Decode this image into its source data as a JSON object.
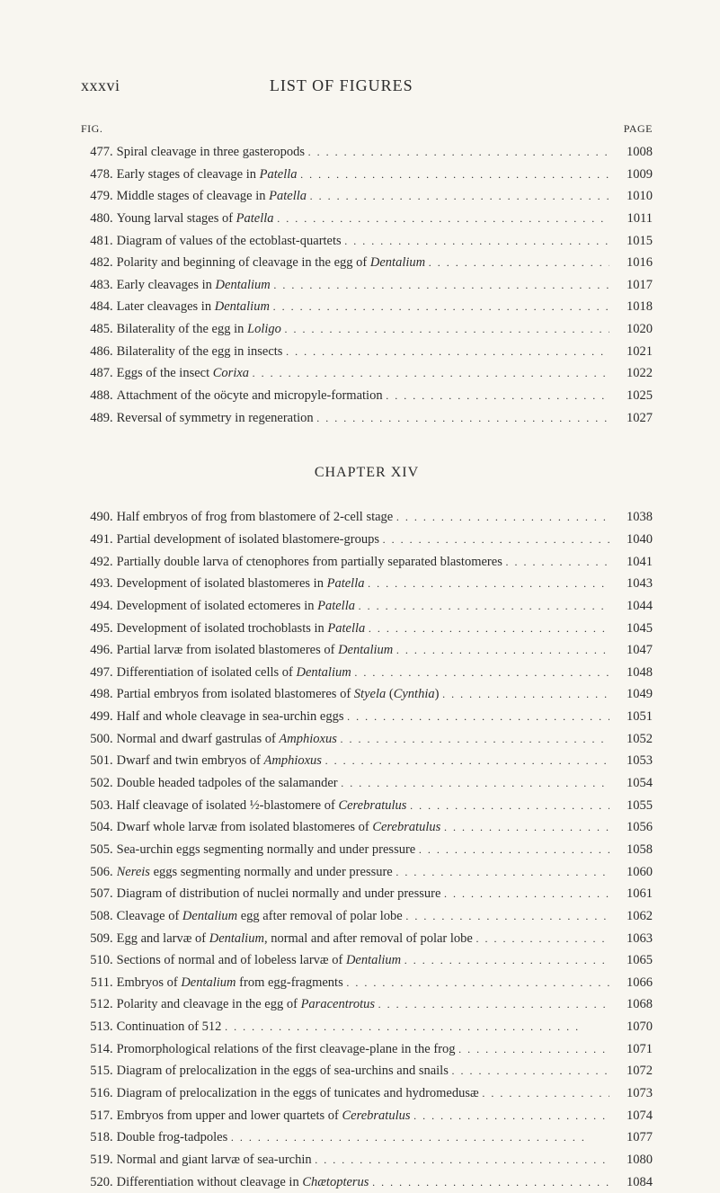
{
  "header": {
    "romanNumeral": "xxxvi",
    "title": "LIST OF FIGURES"
  },
  "columnHeaders": {
    "fig": "FIG.",
    "page": "PAGE"
  },
  "chapterHeading": "CHAPTER XIV",
  "section1": [
    {
      "num": "477",
      "text": "Spiral cleavage in three gasteropods",
      "page": "1008"
    },
    {
      "num": "478",
      "text": "Early stages of cleavage in <i>Patella</i>",
      "page": "1009"
    },
    {
      "num": "479",
      "text": "Middle stages of cleavage in <i>Patella</i>",
      "page": "1010"
    },
    {
      "num": "480",
      "text": "Young larval stages of <i>Patella</i>",
      "page": "1011"
    },
    {
      "num": "481",
      "text": "Diagram of values of the ectoblast-quartets",
      "page": "1015"
    },
    {
      "num": "482",
      "text": "Polarity and beginning of cleavage in the egg of <i>Dentalium</i>",
      "page": "1016"
    },
    {
      "num": "483",
      "text": "Early cleavages in <i>Dentalium</i>",
      "page": "1017"
    },
    {
      "num": "484",
      "text": "Later cleavages in <i>Dentalium</i>",
      "page": "1018"
    },
    {
      "num": "485",
      "text": "Bilaterality of the egg in <i>Loligo</i>",
      "page": "1020"
    },
    {
      "num": "486",
      "text": "Bilaterality of the egg in insects",
      "page": "1021"
    },
    {
      "num": "487",
      "text": "Eggs of the insect <i>Corixa</i>",
      "page": "1022"
    },
    {
      "num": "488",
      "text": "Attachment of the oöcyte and micropyle-formation",
      "page": "1025"
    },
    {
      "num": "489",
      "text": "Reversal of symmetry in regeneration",
      "page": "1027"
    }
  ],
  "section2": [
    {
      "num": "490",
      "text": "Half embryos of frog from blastomere of 2-cell stage",
      "page": "1038"
    },
    {
      "num": "491",
      "text": "Partial development of isolated blastomere-groups",
      "page": "1040"
    },
    {
      "num": "492",
      "text": "Partially double larva of ctenophores from partially separated blastomeres",
      "page": "1041"
    },
    {
      "num": "493",
      "text": "Development of isolated blastomeres in <i>Patella</i>",
      "page": "1043"
    },
    {
      "num": "494",
      "text": "Development of isolated ectomeres in <i>Patella</i>",
      "page": "1044"
    },
    {
      "num": "495",
      "text": "Development of isolated trochoblasts in <i>Patella</i>",
      "page": "1045"
    },
    {
      "num": "496",
      "text": "Partial larvæ from isolated blastomeres of <i>Dentalium</i>",
      "page": "1047"
    },
    {
      "num": "497",
      "text": "Differentiation of isolated cells of <i>Dentalium</i>",
      "page": "1048"
    },
    {
      "num": "498",
      "text": "Partial embryos from isolated blastomeres of <i>Styela</i> (<i>Cynthia</i>)",
      "page": "1049"
    },
    {
      "num": "499",
      "text": "Half and whole cleavage in sea-urchin eggs",
      "page": "1051"
    },
    {
      "num": "500",
      "text": "Normal and dwarf gastrulas of <i>Amphioxus</i>",
      "page": "1052"
    },
    {
      "num": "501",
      "text": "Dwarf and twin embryos of <i>Amphioxus</i>",
      "page": "1053"
    },
    {
      "num": "502",
      "text": "Double headed tadpoles of the salamander",
      "page": "1054"
    },
    {
      "num": "503",
      "text": "Half cleavage of isolated ½-blastomere of <i>Cerebratulus</i>",
      "page": "1055"
    },
    {
      "num": "504",
      "text": "Dwarf whole larvæ from isolated blastomeres of <i>Cerebratulus</i>",
      "page": "1056"
    },
    {
      "num": "505",
      "text": "Sea-urchin eggs segmenting normally and under pressure",
      "page": "1058"
    },
    {
      "num": "506",
      "text": "<i>Nereis</i> eggs segmenting normally and under pressure",
      "page": "1060"
    },
    {
      "num": "507",
      "text": "Diagram of distribution of nuclei normally and under pressure",
      "page": "1061"
    },
    {
      "num": "508",
      "text": "Cleavage of <i>Dentalium</i> egg after removal of polar lobe",
      "page": "1062"
    },
    {
      "num": "509",
      "text": "Egg and larvæ of <i>Dentalium</i>, normal and after removal of polar lobe",
      "page": "1063"
    },
    {
      "num": "510",
      "text": "Sections of normal and of lobeless larvæ of <i>Dentalium</i>",
      "page": "1065"
    },
    {
      "num": "511",
      "text": "Embryos of <i>Dentalium</i> from egg-fragments",
      "page": "1066"
    },
    {
      "num": "512",
      "text": "Polarity and cleavage in the egg of <i>Paracentrotus</i>",
      "page": "1068"
    },
    {
      "num": "513",
      "text": "Continuation of 512",
      "page": "1070"
    },
    {
      "num": "514",
      "text": "Promorphological relations of the first cleavage-plane in the frog",
      "page": "1071"
    },
    {
      "num": "515",
      "text": "Diagram of prelocalization in the eggs of sea-urchins and snails",
      "page": "1072"
    },
    {
      "num": "516",
      "text": "Diagram of prelocalization in the eggs of tunicates and hydromedusæ",
      "page": "1073"
    },
    {
      "num": "517",
      "text": "Embryos from upper and lower quartets of <i>Cerebratulus</i>",
      "page": "1074"
    },
    {
      "num": "518",
      "text": "Double frog-tadpoles",
      "page": "1077"
    },
    {
      "num": "519",
      "text": "Normal and giant larvæ of sea-urchin",
      "page": "1080"
    },
    {
      "num": "520",
      "text": "Differentiation without cleavage in <i>Chætopterus</i>",
      "page": "1084"
    }
  ]
}
